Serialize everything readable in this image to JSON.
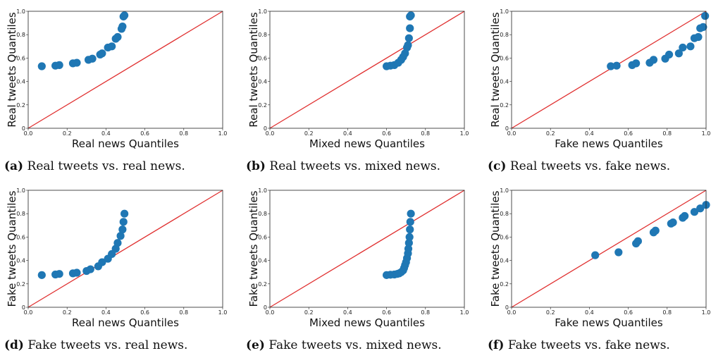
{
  "chart_data": [
    {
      "type": "scatter",
      "caption_letter": "(a)",
      "caption_text": "Real tweets vs. real news.",
      "xlabel": "Real news Quantiles",
      "ylabel": "Real tweets Quantiles",
      "xlim": [
        0,
        1
      ],
      "ylim": [
        0,
        1
      ],
      "xticks": [
        "0.0",
        "0.2",
        "0.4",
        "0.6",
        "0.8",
        "1.0"
      ],
      "yticks": [
        "0",
        "0.2",
        "0.4",
        "0.6",
        "0.8",
        "1.0"
      ],
      "reference_line": "y=x",
      "marker_color": "#1f77b4",
      "line_color": "#e03030",
      "x": [
        0.07,
        0.14,
        0.16,
        0.23,
        0.25,
        0.31,
        0.33,
        0.37,
        0.38,
        0.41,
        0.43,
        0.45,
        0.46,
        0.48,
        0.485,
        0.49,
        0.495
      ],
      "y": [
        0.53,
        0.535,
        0.54,
        0.555,
        0.56,
        0.585,
        0.595,
        0.63,
        0.64,
        0.69,
        0.7,
        0.765,
        0.78,
        0.85,
        0.87,
        0.955,
        0.965
      ]
    },
    {
      "type": "scatter",
      "caption_letter": "(b)",
      "caption_text": "Real tweets vs. mixed news.",
      "xlabel": "Mixed news Quantiles",
      "ylabel": "Real tweets Quantiles",
      "xlim": [
        0,
        1
      ],
      "ylim": [
        0,
        1
      ],
      "xticks": [
        "0.0",
        "0.2",
        "0.4",
        "0.6",
        "0.8",
        "1.0"
      ],
      "yticks": [
        "0",
        "0.2",
        "0.4",
        "0.6",
        "0.8",
        "1.0"
      ],
      "reference_line": "y=x",
      "marker_color": "#1f77b4",
      "line_color": "#e03030",
      "x": [
        0.6,
        0.62,
        0.64,
        0.66,
        0.675,
        0.685,
        0.695,
        0.705,
        0.71,
        0.715,
        0.72,
        0.72,
        0.725
      ],
      "y": [
        0.53,
        0.535,
        0.54,
        0.56,
        0.585,
        0.61,
        0.64,
        0.69,
        0.71,
        0.77,
        0.855,
        0.955,
        0.965
      ]
    },
    {
      "type": "scatter",
      "caption_letter": "(c)",
      "caption_text": "Real tweets vs. fake news.",
      "xlabel": "Fake news Quantiles",
      "ylabel": "Real tweets Quantiles",
      "xlim": [
        0,
        1
      ],
      "ylim": [
        0,
        1
      ],
      "xticks": [
        "0.0",
        "0.2",
        "0.4",
        "0.6",
        "0.8",
        "1.0"
      ],
      "yticks": [
        "0",
        "0.2",
        "0.4",
        "0.6",
        "0.8",
        "1.0"
      ],
      "reference_line": "y=x",
      "marker_color": "#1f77b4",
      "line_color": "#e03030",
      "x": [
        0.51,
        0.54,
        0.62,
        0.64,
        0.71,
        0.73,
        0.79,
        0.81,
        0.86,
        0.88,
        0.92,
        0.94,
        0.96,
        0.97,
        0.985,
        0.995
      ],
      "y": [
        0.53,
        0.535,
        0.54,
        0.555,
        0.56,
        0.585,
        0.595,
        0.63,
        0.64,
        0.69,
        0.7,
        0.77,
        0.78,
        0.855,
        0.865,
        0.96
      ]
    },
    {
      "type": "scatter",
      "caption_letter": "(d)",
      "caption_text": "Fake tweets vs. real news.",
      "xlabel": "Real news Quantiles",
      "ylabel": "Fake tweets Quantiles",
      "xlim": [
        0,
        1
      ],
      "ylim": [
        0,
        1
      ],
      "xticks": [
        "0.0",
        "0.2",
        "0.4",
        "0.6",
        "0.8",
        "1.0"
      ],
      "yticks": [
        "0",
        "0.2",
        "0.4",
        "0.6",
        "0.8",
        "1.0"
      ],
      "reference_line": "y=x",
      "marker_color": "#1f77b4",
      "line_color": "#e03030",
      "x": [
        0.07,
        0.14,
        0.16,
        0.23,
        0.25,
        0.3,
        0.32,
        0.36,
        0.38,
        0.41,
        0.43,
        0.45,
        0.46,
        0.475,
        0.485,
        0.49,
        0.495
      ],
      "y": [
        0.275,
        0.28,
        0.285,
        0.29,
        0.295,
        0.31,
        0.325,
        0.35,
        0.385,
        0.415,
        0.455,
        0.5,
        0.55,
        0.61,
        0.665,
        0.73,
        0.8
      ]
    },
    {
      "type": "scatter",
      "caption_letter": "(e)",
      "caption_text": "Fake tweets vs. mixed news.",
      "xlabel": "Mixed news Quantiles",
      "ylabel": "Fake tweets Quantiles",
      "xlim": [
        0,
        1
      ],
      "ylim": [
        0,
        1
      ],
      "xticks": [
        "0.0",
        "0.2",
        "0.4",
        "0.6",
        "0.8",
        "1.0"
      ],
      "yticks": [
        "0",
        "0.2",
        "0.4",
        "0.6",
        "0.8",
        "1.0"
      ],
      "reference_line": "y=x",
      "marker_color": "#1f77b4",
      "line_color": "#e03030",
      "x": [
        0.6,
        0.62,
        0.64,
        0.655,
        0.665,
        0.675,
        0.685,
        0.69,
        0.695,
        0.7,
        0.705,
        0.71,
        0.712,
        0.715,
        0.718,
        0.72,
        0.722,
        0.725
      ],
      "y": [
        0.275,
        0.278,
        0.28,
        0.285,
        0.29,
        0.3,
        0.315,
        0.335,
        0.36,
        0.385,
        0.42,
        0.46,
        0.5,
        0.55,
        0.6,
        0.665,
        0.73,
        0.8
      ]
    },
    {
      "type": "scatter",
      "caption_letter": "(f)",
      "caption_text": "Fake tweets vs. fake news.",
      "xlabel": "Fake news Quantiles",
      "ylabel": "Fake tweets Quantiles",
      "xlim": [
        0,
        1
      ],
      "ylim": [
        0,
        1
      ],
      "xticks": [
        "0.0",
        "0.2",
        "0.4",
        "0.6",
        "0.8",
        "1.0"
      ],
      "yticks": [
        "0",
        "0.2",
        "0.4",
        "0.6",
        "0.8",
        "1.0"
      ],
      "reference_line": "y=x",
      "marker_color": "#1f77b4",
      "line_color": "#e03030",
      "x": [
        0.43,
        0.55,
        0.64,
        0.65,
        0.73,
        0.74,
        0.82,
        0.83,
        0.88,
        0.89,
        0.94,
        0.97,
        1.0
      ],
      "y": [
        0.445,
        0.47,
        0.545,
        0.565,
        0.64,
        0.655,
        0.715,
        0.725,
        0.765,
        0.78,
        0.815,
        0.845,
        0.875
      ]
    }
  ]
}
